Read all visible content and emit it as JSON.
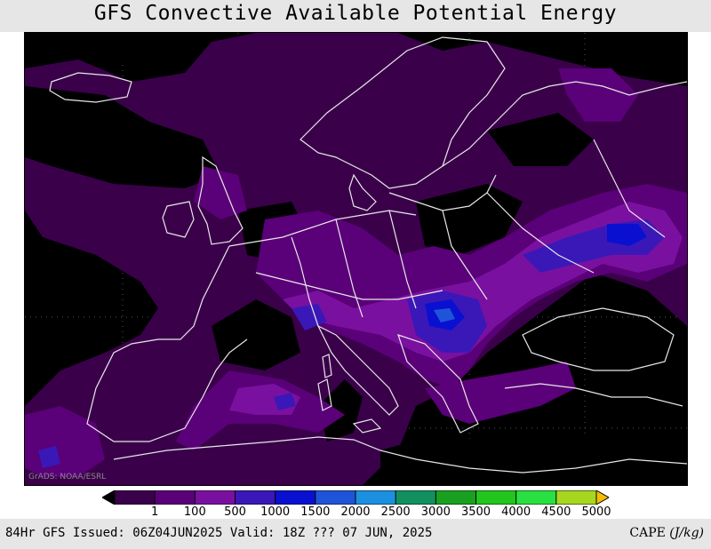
{
  "title": "GFS Convective Available Potential Energy",
  "watermark": "GrADS: NOAA/ESRL",
  "colorbar": {
    "labels": [
      "1",
      "100",
      "500",
      "1000",
      "1500",
      "2000",
      "2500",
      "3000",
      "3500",
      "4000",
      "4500",
      "5000"
    ],
    "colors": [
      "#000000",
      "#3a004a",
      "#5a0078",
      "#7a10a0",
      "#3a18b8",
      "#0a10d0",
      "#1e55d8",
      "#1c90e0",
      "#139060",
      "#1aa020",
      "#22c41e",
      "#28e040",
      "#a6d71e",
      "#f6bd00"
    ]
  },
  "footer": {
    "left": "84Hr GFS Issued: 06Z04JUN2025 Valid: 18Z ??? 07 JUN, 2025",
    "right_prefix": "CAPE ",
    "right_unit": "(J/kg)"
  },
  "map": {
    "background": "#000000",
    "coastline_color": "#e8e8e8",
    "graticule_color": "#555555"
  }
}
